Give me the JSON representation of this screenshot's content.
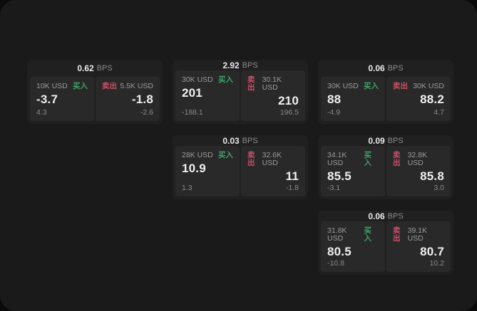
{
  "labels": {
    "bps_unit": "BPS",
    "buy": "买入",
    "sell": "卖出",
    "currency_unit": "USD"
  },
  "colors": {
    "buy_green": "#3da368",
    "sell_red": "#cd5066",
    "panel_bg": "#1a1a1b",
    "card_bg": "#202021",
    "tile_bg": "#29292a"
  },
  "cards": [
    {
      "row": 1,
      "col": 1,
      "bps": "0.62",
      "buy": {
        "amount": "10K USD",
        "value": "-3.7",
        "sub": "4.3"
      },
      "sell": {
        "amount": "5.5K USD",
        "value": "-1.8",
        "sub": "-2.6"
      }
    },
    {
      "row": 1,
      "col": 2,
      "bps": "2.92",
      "buy": {
        "amount": "30K USD",
        "value": "201",
        "sub": "-188.1"
      },
      "sell": {
        "amount": "30.1K USD",
        "value": "210",
        "sub": "196.5"
      }
    },
    {
      "row": 1,
      "col": 3,
      "bps": "0.06",
      "buy": {
        "amount": "30K USD",
        "value": "88",
        "sub": "-4.9"
      },
      "sell": {
        "amount": "30K USD",
        "value": "88.2",
        "sub": "4.7"
      }
    },
    {
      "row": 2,
      "col": 2,
      "bps": "0.03",
      "buy": {
        "amount": "28K USD",
        "value": "10.9",
        "sub": "1.3"
      },
      "sell": {
        "amount": "32.6K USD",
        "value": "11",
        "sub": "-1.8"
      }
    },
    {
      "row": 2,
      "col": 3,
      "bps": "0.09",
      "buy": {
        "amount": "34.1K USD",
        "value": "85.5",
        "sub": "-3.1"
      },
      "sell": {
        "amount": "32.8K USD",
        "value": "85.8",
        "sub": "3.0"
      }
    },
    {
      "row": 3,
      "col": 3,
      "bps": "0.06",
      "buy": {
        "amount": "31.8K USD",
        "value": "80.5",
        "sub": "-10.8"
      },
      "sell": {
        "amount": "39.1K USD",
        "value": "80.7",
        "sub": "10.2"
      }
    }
  ]
}
